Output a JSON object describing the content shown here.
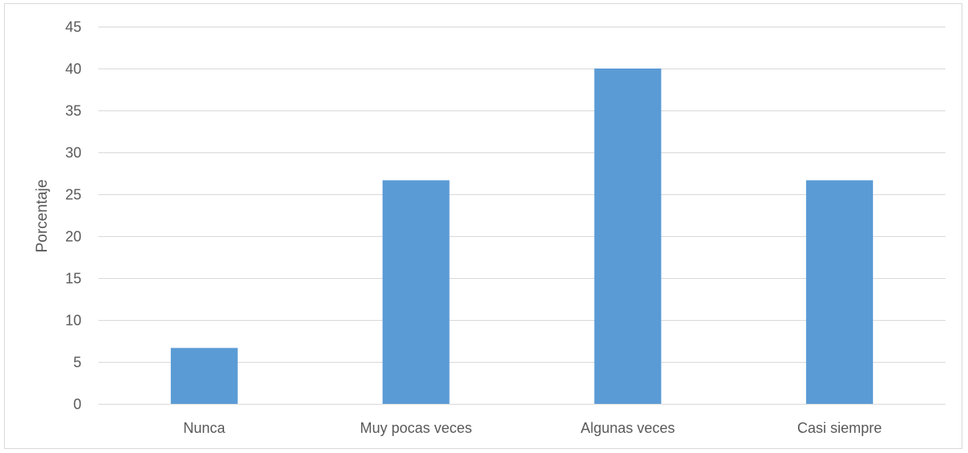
{
  "chart_data": {
    "type": "bar",
    "categories": [
      "Nunca",
      "Muy pocas veces",
      "Algunas veces",
      "Casi siempre"
    ],
    "values": [
      6.67,
      26.67,
      40,
      26.67
    ],
    "title": "",
    "xlabel": "",
    "ylabel": "Porcentaje",
    "ylim": [
      0,
      45
    ],
    "yticks": [
      0,
      5,
      10,
      15,
      20,
      25,
      30,
      35,
      40,
      45
    ],
    "grid": true,
    "legend": "none",
    "bar_color": "#5b9bd5",
    "grid_color": "#d9d9d9",
    "text_color": "#595959"
  }
}
